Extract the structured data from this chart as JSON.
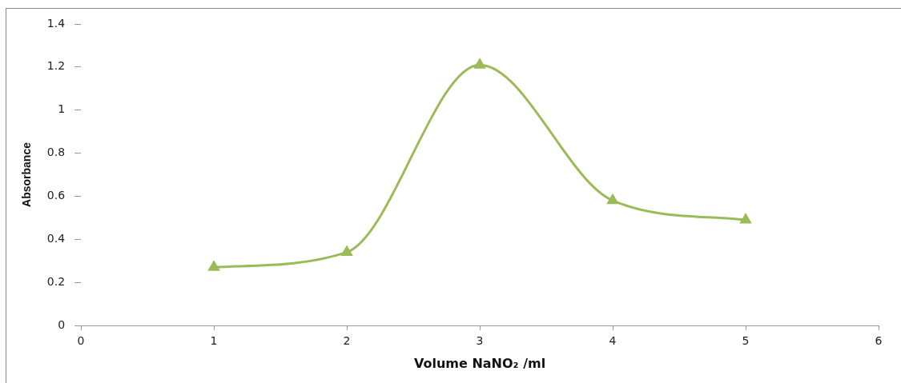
{
  "chart_data": {
    "type": "line",
    "xlabel": "Volume NaNO₂ /ml",
    "ylabel": "Absorbance",
    "x": [
      1,
      2,
      3,
      4,
      5
    ],
    "series": [
      {
        "color": "#9bbb59",
        "values": [
          0.27,
          0.34,
          1.21,
          0.58,
          0.49
        ]
      }
    ],
    "xlim": [
      0,
      6
    ],
    "xticks": [
      0,
      1,
      2,
      3,
      4,
      5,
      6
    ],
    "ylim": [
      0,
      1.4
    ],
    "yticks": [
      0,
      0.2,
      0.4,
      0.6,
      0.8,
      1,
      1.2,
      1.4
    ],
    "grid": false,
    "legend": false,
    "marker": "triangle",
    "line_style": "solid"
  }
}
